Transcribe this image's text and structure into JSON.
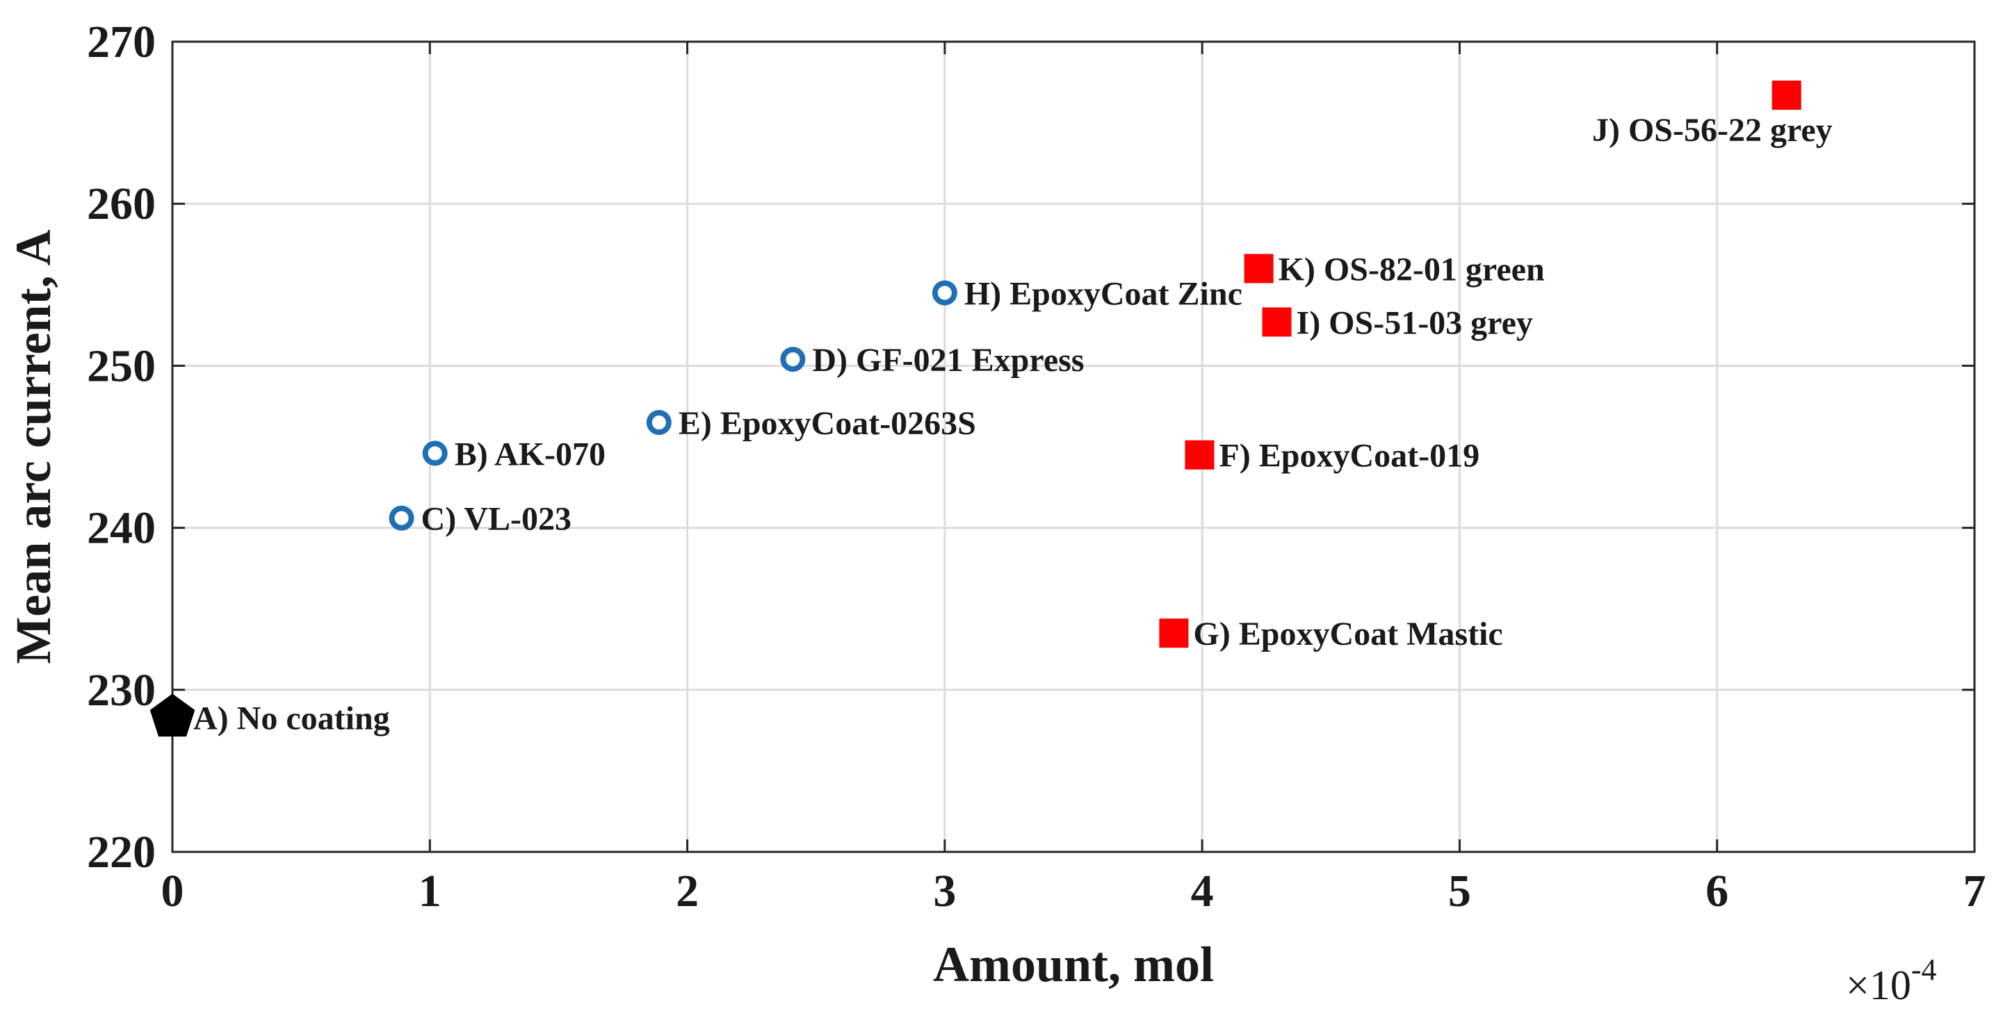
{
  "chart_data": {
    "type": "scatter",
    "title": "",
    "xlabel": "Amount, mol",
    "ylabel": "Mean arc current, A",
    "x_multiplier_label": "×10",
    "x_multiplier_exponent": "-4",
    "xlim": [
      0,
      7
    ],
    "ylim": [
      220,
      270
    ],
    "x_ticks": [
      0,
      1,
      2,
      3,
      4,
      5,
      6,
      7
    ],
    "y_ticks": [
      220,
      230,
      240,
      250,
      260,
      270
    ],
    "x_tick_labels": [
      "0",
      "1",
      "2",
      "3",
      "4",
      "5",
      "6",
      "7"
    ],
    "y_tick_labels": [
      "220",
      "230",
      "240",
      "250",
      "260",
      "270"
    ],
    "grid": true,
    "series": [
      {
        "name": "uncoated",
        "marker": "pentagon",
        "color": "#000000",
        "points": [
          {
            "label": "A) No coating",
            "x": 0.0,
            "y": 228.3
          }
        ]
      },
      {
        "name": "circle-markers",
        "marker": "circle",
        "color": "#1f6fb2",
        "points": [
          {
            "label": "B) AK-070",
            "x": 1.02,
            "y": 244.6
          },
          {
            "label": "C) VL-023",
            "x": 0.89,
            "y": 240.6
          },
          {
            "label": "D) GF-021 Express",
            "x": 2.41,
            "y": 250.4
          },
          {
            "label": "E) EpoxyCoat-0263S",
            "x": 1.89,
            "y": 246.5
          },
          {
            "label": "H) EpoxyCoat Zinc",
            "x": 3.0,
            "y": 254.5
          }
        ]
      },
      {
        "name": "square-markers",
        "marker": "square",
        "color": "#ff0000",
        "points": [
          {
            "label": "F) EpoxyCoat-019",
            "x": 3.99,
            "y": 244.5
          },
          {
            "label": "G) EpoxyCoat Mastic",
            "x": 3.89,
            "y": 233.5
          },
          {
            "label": "I) OS-51-03 grey",
            "x": 4.29,
            "y": 252.7
          },
          {
            "label": "J) OS-56-22 grey",
            "x": 6.27,
            "y": 266.7
          },
          {
            "label": "K) OS-82-01 green",
            "x": 4.22,
            "y": 256.0
          }
        ]
      }
    ]
  }
}
